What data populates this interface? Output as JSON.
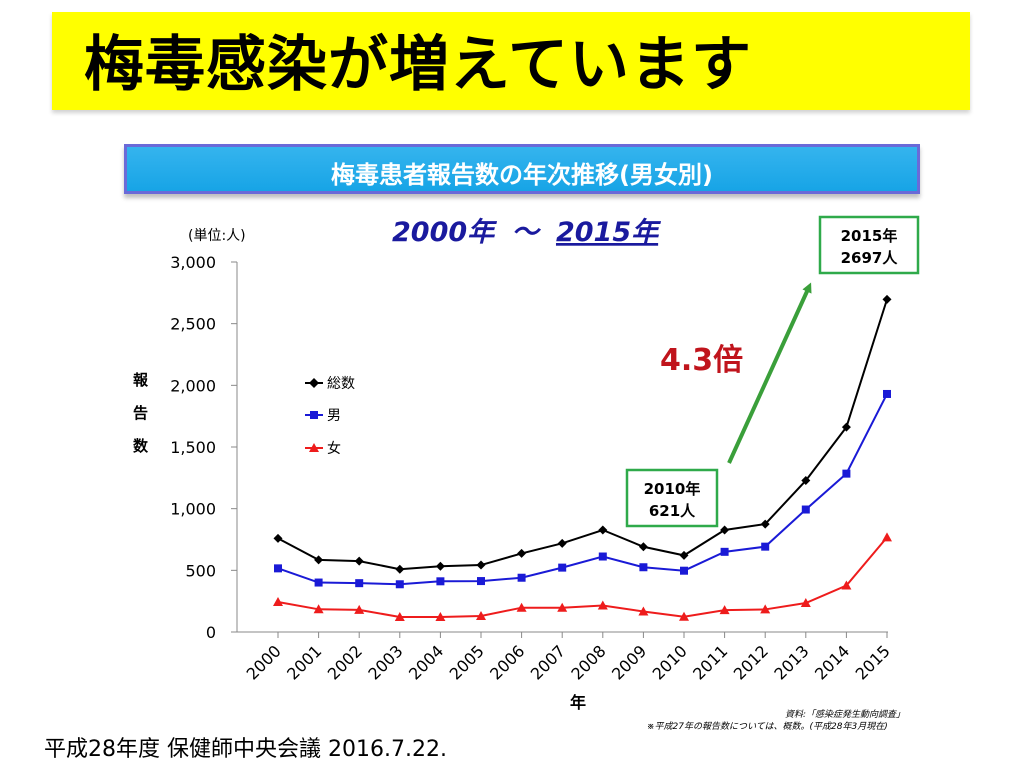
{
  "slide": {
    "title": "梅毒感染が増えています",
    "footer": "平成28年度 保健師中央会議 2016.7.22."
  },
  "chart_data": {
    "type": "line",
    "title": "梅毒患者報告数の年次推移(男女別)",
    "subtitle": {
      "start": "2000年",
      "separator": "〜",
      "end": "2015年"
    },
    "unit_label": "(単位:人)",
    "xlabel": "年",
    "ylabel": "報告数",
    "ylim": [
      0,
      3000
    ],
    "yticks": [
      {
        "value": 0,
        "label": "0"
      },
      {
        "value": 500,
        "label": "500"
      },
      {
        "value": 1000,
        "label": "1,000"
      },
      {
        "value": 1500,
        "label": "1,500"
      },
      {
        "value": 2000,
        "label": "2,000"
      },
      {
        "value": 2500,
        "label": "2,500"
      },
      {
        "value": 3000,
        "label": "3,000"
      }
    ],
    "categories": [
      "2000",
      "2001",
      "2002",
      "2003",
      "2004",
      "2005",
      "2006",
      "2007",
      "2008",
      "2009",
      "2010",
      "2011",
      "2012",
      "2013",
      "2014",
      "2015"
    ],
    "series": [
      {
        "name": "総数",
        "color": "#000000",
        "marker": "diamond",
        "values": [
          759,
          585,
          575,
          509,
          533,
          543,
          637,
          719,
          827,
          691,
          621,
          827,
          875,
          1228,
          1661,
          2697
        ]
      },
      {
        "name": "男",
        "color": "#1a1ad6",
        "marker": "square",
        "values": [
          516,
          401,
          396,
          387,
          411,
          413,
          440,
          522,
          612,
          525,
          497,
          650,
          692,
          993,
          1284,
          1930
        ]
      },
      {
        "name": "女",
        "color": "#ee1c1c",
        "marker": "triangle",
        "values": [
          243,
          184,
          179,
          122,
          122,
          130,
          197,
          197,
          215,
          166,
          124,
          177,
          183,
          235,
          377,
          767
        ]
      }
    ],
    "annotations": {
      "callout_2010": {
        "line1": "2010年",
        "line2": "621人"
      },
      "callout_2015": {
        "line1": "2015年",
        "line2": "2697人"
      },
      "ratio": "4.3倍"
    },
    "source_note": "資料:「感染症発生動向調査」",
    "note": "※平成27年の報告数については、概数。(平成28年3月現在)"
  }
}
